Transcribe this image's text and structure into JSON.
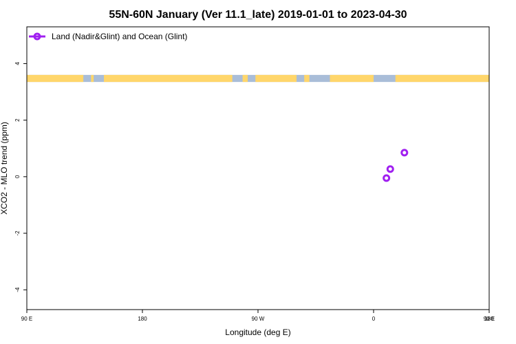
{
  "chart_data": {
    "type": "scatter",
    "title": "55N-60N January (Ver 11.1_late)   2019-01-01 to 2023-04-30",
    "xlabel": "Longitude (deg E)",
    "ylabel": "XCO2 - MLO trend (ppm)",
    "xlim": [
      90,
      450
    ],
    "ylim": [
      -4.7,
      5.3
    ],
    "x_ticks": [
      {
        "value": 90,
        "label": "90 E"
      },
      {
        "value": 180,
        "label": "180"
      },
      {
        "value": 270,
        "label": "90 W"
      },
      {
        "value": 360,
        "label": "0"
      },
      {
        "value": 450,
        "label": "90 E"
      },
      {
        "value": 540,
        "label": "180"
      }
    ],
    "y_ticks": [
      {
        "value": -4,
        "label": "-4"
      },
      {
        "value": -2,
        "label": "-2"
      },
      {
        "value": 0,
        "label": "0"
      },
      {
        "value": 2,
        "label": "2"
      },
      {
        "value": 4,
        "label": "4"
      }
    ],
    "series": [
      {
        "name": "Land (Nadir&Glint) and Ocean (Glint)",
        "color": "#a020f0",
        "points": [
          {
            "x": 370,
            "y": -0.05
          },
          {
            "x": 373,
            "y": 0.27
          },
          {
            "x": 384,
            "y": 0.85
          }
        ]
      }
    ],
    "legend": {
      "position": "top-left"
    },
    "land_strip": {
      "y_range": [
        3.35,
        3.6
      ],
      "ocean_color": "#a9bdd8",
      "land_color": "#ffd66b",
      "land_segments": [
        [
          90,
          134
        ],
        [
          140,
          142
        ],
        [
          150,
          250
        ],
        [
          258,
          262
        ],
        [
          268,
          300
        ],
        [
          306,
          310
        ],
        [
          326,
          360
        ],
        [
          377,
          560
        ],
        [
          658,
          688
        ]
      ]
    }
  }
}
